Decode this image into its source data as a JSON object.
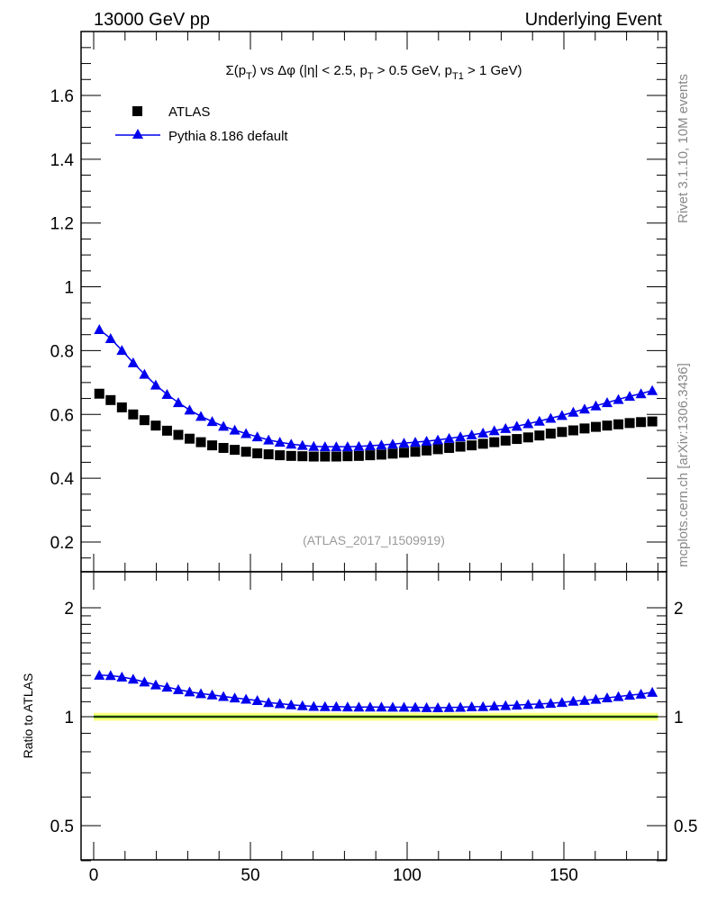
{
  "header": {
    "left": "13000 GeV pp",
    "right": "Underlying Event"
  },
  "side": {
    "rivet": "Rivet 3.1.10,  10M events",
    "mcplots": "mcplots.cern.ch [arXiv:1306.3436]"
  },
  "analysis_label": "(ATLAS_2017_I1509919)",
  "colors": {
    "atlas": "#000000",
    "pythia": "#0000ee",
    "band_outer": "#ffff80",
    "band_inner": "#88dd44"
  },
  "chart_data": [
    {
      "type": "scatter",
      "title": "Σ(p_T) vs Δφ (|η| < 2.5, p_T > 0.5 GeV, p_T1 > 1 GeV)",
      "xlabel": "",
      "ylabel": "",
      "xlim": [
        -5,
        181
      ],
      "ylim": [
        0.107,
        1.8
      ],
      "yticks": [
        0.2,
        0.4,
        0.6,
        0.8,
        1,
        1.2,
        1.4,
        1.6
      ],
      "ytick_labels": [
        "0.2",
        "0.4",
        "0.6",
        "0.8",
        "1",
        "1.2",
        "1.4",
        "1.6"
      ],
      "legend": [
        "ATLAS",
        "Pythia 8.186 default"
      ],
      "legend_position": "top-left",
      "x_start": 1.8,
      "x_step": 3.6,
      "series": [
        {
          "name": "ATLAS",
          "marker": "square",
          "values": [
            0.665,
            0.645,
            0.622,
            0.6,
            0.582,
            0.565,
            0.549,
            0.536,
            0.524,
            0.513,
            0.503,
            0.495,
            0.489,
            0.483,
            0.478,
            0.475,
            0.472,
            0.47,
            0.469,
            0.468,
            0.468,
            0.468,
            0.469,
            0.47,
            0.472,
            0.474,
            0.477,
            0.48,
            0.483,
            0.487,
            0.491,
            0.495,
            0.499,
            0.503,
            0.508,
            0.513,
            0.518,
            0.523,
            0.528,
            0.534,
            0.54,
            0.545,
            0.55,
            0.556,
            0.561,
            0.565,
            0.569,
            0.573,
            0.576,
            0.578
          ]
        },
        {
          "name": "Pythia 8.186 default",
          "marker": "triangle",
          "values": [
            0.866,
            0.838,
            0.801,
            0.762,
            0.726,
            0.692,
            0.663,
            0.637,
            0.614,
            0.594,
            0.578,
            0.563,
            0.551,
            0.54,
            0.53,
            0.52,
            0.513,
            0.507,
            0.503,
            0.5,
            0.499,
            0.499,
            0.499,
            0.5,
            0.502,
            0.504,
            0.507,
            0.51,
            0.513,
            0.516,
            0.52,
            0.525,
            0.53,
            0.536,
            0.542,
            0.549,
            0.556,
            0.563,
            0.571,
            0.579,
            0.588,
            0.597,
            0.607,
            0.617,
            0.627,
            0.637,
            0.647,
            0.657,
            0.665,
            0.675
          ]
        }
      ]
    },
    {
      "type": "scatter",
      "title": "",
      "ylabel": "Ratio to ATLAS",
      "yscale": "log",
      "ylim": [
        0.4,
        2.52
      ],
      "xlim": [
        -5,
        181
      ],
      "yticks": [
        0.5,
        1,
        2
      ],
      "ytick_labels": [
        "0.5",
        "1",
        "2"
      ],
      "xticks": [
        0,
        50,
        100,
        150
      ],
      "xtick_labels": [
        "0",
        "50",
        "100",
        "150"
      ],
      "series": [
        {
          "name": "Pythia 8.186 default / ATLAS",
          "derived": "ratio"
        }
      ]
    }
  ]
}
